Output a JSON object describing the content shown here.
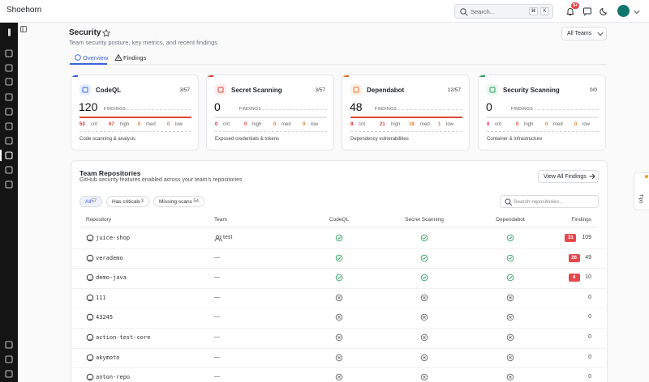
{
  "header": {
    "brand": "Shoehorn",
    "search_placeholder": "Search...",
    "shortcut": [
      "⌘",
      "K"
    ],
    "notification_badge": "9+"
  },
  "page": {
    "title": "Security",
    "subtitle": "Team security posture, key metrics, and recent findings",
    "tabs": [
      "Overview",
      "Findings"
    ],
    "team_filter": "All Teams"
  },
  "cards": [
    {
      "name": "CodeQL",
      "coverage": "3/57",
      "total": 120,
      "total_label": "FINDINGS",
      "severities": [
        {
          "count": 53,
          "label": "crit"
        },
        {
          "count": 67,
          "label": "high"
        },
        {
          "count": 0,
          "label": "med"
        },
        {
          "count": 0,
          "label": "low"
        }
      ],
      "description": "Code scanning & analysis"
    },
    {
      "name": "Secret Scanning",
      "coverage": "3/57",
      "total": 0,
      "total_label": "FINDINGS",
      "severities": [
        {
          "count": 0,
          "label": "crit"
        },
        {
          "count": 0,
          "label": "high"
        },
        {
          "count": 0,
          "label": "med"
        },
        {
          "count": 0,
          "label": "low"
        }
      ],
      "description": "Exposed credentials & tokens"
    },
    {
      "name": "Dependabot",
      "coverage": "12/57",
      "total": 48,
      "total_label": "FINDINGS",
      "severities": [
        {
          "count": 8,
          "label": "crit"
        },
        {
          "count": 21,
          "label": "high"
        },
        {
          "count": 18,
          "label": "med"
        },
        {
          "count": 1,
          "label": "low"
        }
      ],
      "description": "Dependency vulnerabilities"
    },
    {
      "name": "Security Scanning",
      "coverage": "0/0",
      "total": 0,
      "total_label": "FINDINGS",
      "severities": [
        {
          "count": 0,
          "label": "crit"
        },
        {
          "count": 0,
          "label": "high"
        },
        {
          "count": 0,
          "label": "med"
        },
        {
          "count": 0,
          "label": "low"
        }
      ],
      "description": "Container & infrastructure"
    }
  ],
  "repositories": {
    "title": "Team Repositories",
    "subtitle": "GitHub security features enabled across your team's repositories",
    "action": "View All Findings",
    "filters": [
      {
        "label": "All",
        "count": 57
      },
      {
        "label": "Has criticals",
        "count": 3
      },
      {
        "label": "Missing scans",
        "count": 54
      }
    ],
    "search_placeholder": "Search repositories...",
    "columns": [
      "Repository",
      "Team",
      "CodeQL",
      "Secret Scanning",
      "Dependabot",
      "Findings"
    ],
    "rows": [
      {
        "name": "juice-shop",
        "team": "test",
        "codeql": true,
        "secret_scanning": true,
        "dependabot": true,
        "criticals": 31,
        "findings": 109
      },
      {
        "name": "verademo",
        "team": "—",
        "codeql": true,
        "secret_scanning": true,
        "dependabot": true,
        "criticals": 26,
        "findings": 49
      },
      {
        "name": "demo-java",
        "team": "—",
        "codeql": true,
        "secret_scanning": true,
        "dependabot": true,
        "criticals": 4,
        "findings": 10
      },
      {
        "name": "111",
        "team": "—",
        "codeql": false,
        "secret_scanning": false,
        "dependabot": false,
        "findings": 0
      },
      {
        "name": "43245",
        "team": "—",
        "codeql": false,
        "secret_scanning": false,
        "dependabot": false,
        "findings": 0
      },
      {
        "name": "action-test-core",
        "team": "—",
        "codeql": false,
        "secret_scanning": false,
        "dependabot": false,
        "findings": 0
      },
      {
        "name": "akymoto",
        "team": "—",
        "codeql": false,
        "secret_scanning": false,
        "dependabot": false,
        "findings": 0
      },
      {
        "name": "anton-repo",
        "team": "—",
        "codeql": false,
        "secret_scanning": false,
        "dependabot": false,
        "findings": 0
      }
    ]
  },
  "tips": "Tips"
}
